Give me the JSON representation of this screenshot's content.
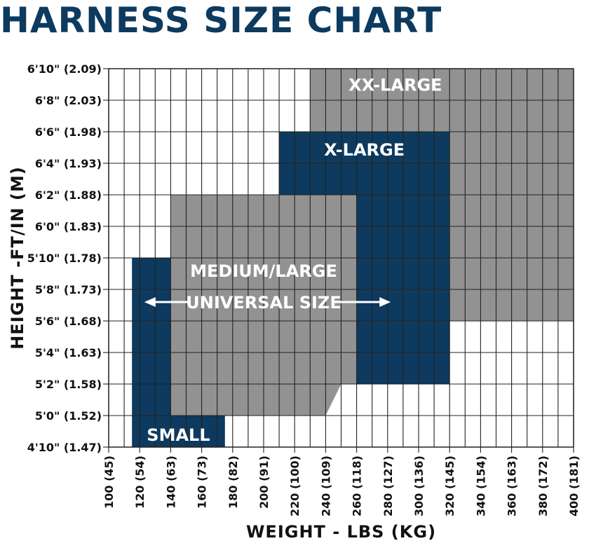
{
  "title": "HARNESS SIZE CHART",
  "colors": {
    "navy": "#0d3a5e",
    "gray": "#929292",
    "grid": "#222222"
  },
  "chart_data": {
    "type": "table",
    "xlabel": "WEIGHT - LBS (KG)",
    "ylabel": "HEIGHT -FT/IN (M)",
    "x_unit": "lbs",
    "y_unit": "inches",
    "xlim": [
      100,
      400
    ],
    "ylim": [
      58,
      82
    ],
    "x_ticks": [
      {
        "value": 100,
        "label": "100 (45)"
      },
      {
        "value": 120,
        "label": "120 (54)"
      },
      {
        "value": 140,
        "label": "140 (63)"
      },
      {
        "value": 160,
        "label": "160 (73)"
      },
      {
        "value": 180,
        "label": "180 (82)"
      },
      {
        "value": 200,
        "label": "200 (91)"
      },
      {
        "value": 220,
        "label": "220 (100)"
      },
      {
        "value": 240,
        "label": "240 (109)"
      },
      {
        "value": 260,
        "label": "260 (118)"
      },
      {
        "value": 280,
        "label": "280 (127)"
      },
      {
        "value": 300,
        "label": "300 (136)"
      },
      {
        "value": 320,
        "label": "320 (145)"
      },
      {
        "value": 340,
        "label": "340 (154)"
      },
      {
        "value": 360,
        "label": "360 (163)"
      },
      {
        "value": 380,
        "label": "380 (172)"
      },
      {
        "value": 400,
        "label": "400 (181)"
      }
    ],
    "y_ticks": [
      {
        "value": 82,
        "label": "6'10\" (2.09)"
      },
      {
        "value": 80,
        "label": "6'8\" (2.03)"
      },
      {
        "value": 78,
        "label": "6'6\" (1.98)"
      },
      {
        "value": 76,
        "label": "6'4\" (1.93)"
      },
      {
        "value": 74,
        "label": "6'2\" (1.88)"
      },
      {
        "value": 72,
        "label": "6'0\" (1.83)"
      },
      {
        "value": 70,
        "label": "5'10\" (1.78)"
      },
      {
        "value": 68,
        "label": "5'8\" (1.73)"
      },
      {
        "value": 66,
        "label": "5'6\" (1.68)"
      },
      {
        "value": 64,
        "label": "5'4\" (1.63)"
      },
      {
        "value": 62,
        "label": "5'2\" (1.58)"
      },
      {
        "value": 60,
        "label": "5'0\" (1.52)"
      },
      {
        "value": 58,
        "label": "4'10\" (1.47)"
      }
    ],
    "regions": [
      {
        "name": "XX-LARGE",
        "color": "gray",
        "polygon": [
          [
            230,
            82
          ],
          [
            400,
            82
          ],
          [
            400,
            66
          ],
          [
            320,
            66
          ],
          [
            320,
            78
          ],
          [
            230,
            78
          ]
        ],
        "label_at": [
          285,
          81
        ]
      },
      {
        "name": "SMALL",
        "color": "navy",
        "polygon": [
          [
            115,
            70
          ],
          [
            140,
            70
          ],
          [
            140,
            60
          ],
          [
            175,
            60
          ],
          [
            175,
            58
          ],
          [
            115,
            58
          ]
        ],
        "label_at": [
          145,
          58.8
        ]
      },
      {
        "name": "MEDIUM/LARGE",
        "color": "gray",
        "polygon": [
          [
            140,
            74
          ],
          [
            260,
            74
          ],
          [
            260,
            62
          ],
          [
            250,
            62
          ],
          [
            240,
            60
          ],
          [
            140,
            60
          ]
        ],
        "label_at": [
          200,
          69.2
        ]
      },
      {
        "name": "X-LARGE",
        "color": "navy",
        "polygon": [
          [
            210,
            78
          ],
          [
            320,
            78
          ],
          [
            320,
            62
          ],
          [
            260,
            62
          ],
          [
            260,
            74
          ],
          [
            210,
            74
          ]
        ],
        "label_at": [
          265,
          76.9
        ]
      }
    ],
    "annotation": {
      "text": "UNIVERSAL SIZE",
      "x_from": 123,
      "x_to": 282,
      "y": 67.2
    }
  }
}
